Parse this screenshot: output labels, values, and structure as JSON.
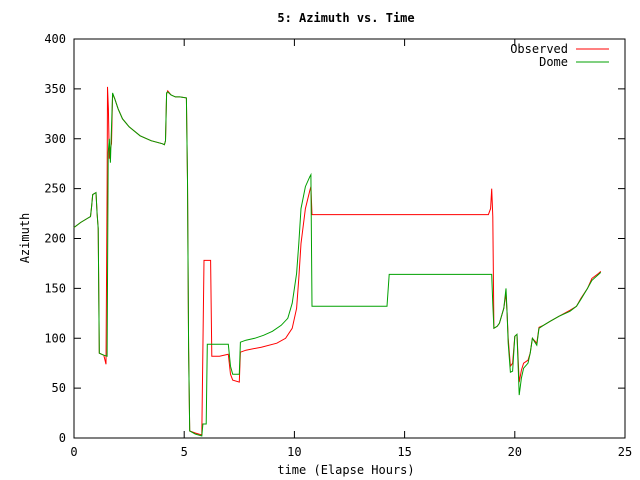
{
  "chart_data": {
    "type": "line",
    "title": "5: Azimuth vs. Time",
    "xlabel": "time (Elapse Hours)",
    "ylabel": "Azimuth",
    "xlim": [
      0,
      25
    ],
    "ylim": [
      0,
      400
    ],
    "x_ticks": [
      "0",
      "5",
      "10",
      "15",
      "20",
      "25"
    ],
    "y_ticks": [
      "0",
      "50",
      "100",
      "150",
      "200",
      "250",
      "300",
      "350",
      "400"
    ],
    "grid": false,
    "legend_position": "top-right",
    "series": [
      {
        "name": "Observed",
        "color": "#ff0000",
        "points": [
          [
            0.0,
            211
          ],
          [
            0.3,
            216
          ],
          [
            0.6,
            220
          ],
          [
            0.75,
            222
          ],
          [
            0.8,
            232
          ],
          [
            0.85,
            244
          ],
          [
            1.0,
            246
          ],
          [
            1.05,
            225
          ],
          [
            1.1,
            210
          ],
          [
            1.15,
            85
          ],
          [
            1.25,
            84
          ],
          [
            1.35,
            83
          ],
          [
            1.45,
            74
          ],
          [
            1.5,
            250
          ],
          [
            1.52,
            352
          ],
          [
            1.56,
            330
          ],
          [
            1.6,
            280
          ],
          [
            1.65,
            290
          ],
          [
            1.7,
            295
          ],
          [
            1.75,
            345
          ],
          [
            1.85,
            340
          ],
          [
            2.0,
            330
          ],
          [
            2.2,
            320
          ],
          [
            2.5,
            312
          ],
          [
            3.0,
            303
          ],
          [
            3.5,
            298
          ],
          [
            4.0,
            295
          ],
          [
            4.1,
            294
          ],
          [
            4.15,
            298
          ],
          [
            4.2,
            345
          ],
          [
            4.25,
            348
          ],
          [
            4.4,
            344
          ],
          [
            4.6,
            342
          ],
          [
            4.8,
            342
          ],
          [
            5.1,
            341
          ],
          [
            5.15,
            258
          ],
          [
            5.2,
            90
          ],
          [
            5.25,
            7
          ],
          [
            5.5,
            5
          ],
          [
            5.8,
            3
          ],
          [
            5.9,
            178
          ],
          [
            6.2,
            178
          ],
          [
            6.25,
            82
          ],
          [
            6.6,
            82
          ],
          [
            7.0,
            84
          ],
          [
            7.1,
            64
          ],
          [
            7.2,
            58
          ],
          [
            7.5,
            56
          ],
          [
            7.55,
            86
          ],
          [
            7.8,
            88
          ],
          [
            8.5,
            91
          ],
          [
            9.2,
            95
          ],
          [
            9.6,
            100
          ],
          [
            9.9,
            110
          ],
          [
            10.1,
            130
          ],
          [
            10.2,
            160
          ],
          [
            10.3,
            195
          ],
          [
            10.5,
            230
          ],
          [
            10.7,
            248
          ],
          [
            10.75,
            252
          ],
          [
            10.8,
            224
          ],
          [
            12.0,
            224
          ],
          [
            14.0,
            224
          ],
          [
            16.0,
            224
          ],
          [
            18.0,
            224
          ],
          [
            18.8,
            224
          ],
          [
            18.9,
            230
          ],
          [
            18.95,
            250
          ],
          [
            19.0,
            222
          ],
          [
            19.05,
            110
          ],
          [
            19.2,
            112
          ],
          [
            19.3,
            115
          ],
          [
            19.5,
            130
          ],
          [
            19.6,
            145
          ],
          [
            19.65,
            125
          ],
          [
            19.7,
            100
          ],
          [
            19.8,
            72
          ],
          [
            19.9,
            75
          ],
          [
            20.0,
            102
          ],
          [
            20.1,
            104
          ],
          [
            20.2,
            56
          ],
          [
            20.3,
            68
          ],
          [
            20.4,
            75
          ],
          [
            20.6,
            78
          ],
          [
            20.7,
            85
          ],
          [
            20.8,
            100
          ],
          [
            21.0,
            95
          ],
          [
            21.1,
            111
          ],
          [
            21.3,
            113
          ],
          [
            21.6,
            117
          ],
          [
            22.0,
            122
          ],
          [
            22.5,
            128
          ],
          [
            22.8,
            132
          ],
          [
            23.0,
            140
          ],
          [
            23.3,
            150
          ],
          [
            23.5,
            160
          ],
          [
            23.8,
            165
          ],
          [
            23.9,
            167
          ]
        ]
      },
      {
        "name": "Dome",
        "color": "#00a000",
        "points": [
          [
            0.0,
            211
          ],
          [
            0.3,
            216
          ],
          [
            0.6,
            220
          ],
          [
            0.75,
            222
          ],
          [
            0.8,
            232
          ],
          [
            0.85,
            244
          ],
          [
            1.0,
            246
          ],
          [
            1.05,
            225
          ],
          [
            1.1,
            210
          ],
          [
            1.15,
            85
          ],
          [
            1.25,
            84
          ],
          [
            1.35,
            83
          ],
          [
            1.5,
            82
          ],
          [
            1.55,
            286
          ],
          [
            1.6,
            300
          ],
          [
            1.65,
            276
          ],
          [
            1.75,
            346
          ],
          [
            1.85,
            340
          ],
          [
            2.0,
            330
          ],
          [
            2.2,
            320
          ],
          [
            2.5,
            312
          ],
          [
            3.0,
            303
          ],
          [
            3.5,
            298
          ],
          [
            4.0,
            295
          ],
          [
            4.1,
            294
          ],
          [
            4.15,
            298
          ],
          [
            4.2,
            346
          ],
          [
            4.25,
            347
          ],
          [
            4.4,
            344
          ],
          [
            4.6,
            342
          ],
          [
            4.8,
            342
          ],
          [
            5.1,
            341
          ],
          [
            5.15,
            258
          ],
          [
            5.2,
            90
          ],
          [
            5.25,
            7
          ],
          [
            5.5,
            4
          ],
          [
            5.8,
            2
          ],
          [
            5.85,
            14
          ],
          [
            6.0,
            14
          ],
          [
            6.05,
            94
          ],
          [
            6.6,
            94
          ],
          [
            7.0,
            94
          ],
          [
            7.1,
            72
          ],
          [
            7.2,
            64
          ],
          [
            7.5,
            64
          ],
          [
            7.55,
            96
          ],
          [
            7.8,
            98
          ],
          [
            8.2,
            100
          ],
          [
            8.6,
            103
          ],
          [
            9.0,
            107
          ],
          [
            9.4,
            113
          ],
          [
            9.7,
            120
          ],
          [
            9.9,
            135
          ],
          [
            10.1,
            165
          ],
          [
            10.2,
            195
          ],
          [
            10.3,
            230
          ],
          [
            10.5,
            252
          ],
          [
            10.7,
            262
          ],
          [
            10.75,
            264
          ],
          [
            10.8,
            132
          ],
          [
            12.0,
            132
          ],
          [
            14.0,
            132
          ],
          [
            14.2,
            132
          ],
          [
            14.3,
            164
          ],
          [
            16.0,
            164
          ],
          [
            18.0,
            164
          ],
          [
            18.95,
            164
          ],
          [
            19.0,
            134
          ],
          [
            19.05,
            110
          ],
          [
            19.2,
            112
          ],
          [
            19.3,
            115
          ],
          [
            19.5,
            130
          ],
          [
            19.6,
            150
          ],
          [
            19.65,
            125
          ],
          [
            19.7,
            95
          ],
          [
            19.8,
            66
          ],
          [
            19.9,
            67
          ],
          [
            20.0,
            102
          ],
          [
            20.1,
            104
          ],
          [
            20.2,
            43
          ],
          [
            20.3,
            60
          ],
          [
            20.4,
            70
          ],
          [
            20.6,
            75
          ],
          [
            20.7,
            85
          ],
          [
            20.8,
            100
          ],
          [
            21.0,
            93
          ],
          [
            21.1,
            110
          ],
          [
            21.3,
            113
          ],
          [
            21.6,
            117
          ],
          [
            22.0,
            122
          ],
          [
            22.5,
            127
          ],
          [
            22.8,
            132
          ],
          [
            23.0,
            139
          ],
          [
            23.3,
            150
          ],
          [
            23.5,
            158
          ],
          [
            23.8,
            164
          ],
          [
            23.9,
            166
          ]
        ]
      }
    ]
  }
}
